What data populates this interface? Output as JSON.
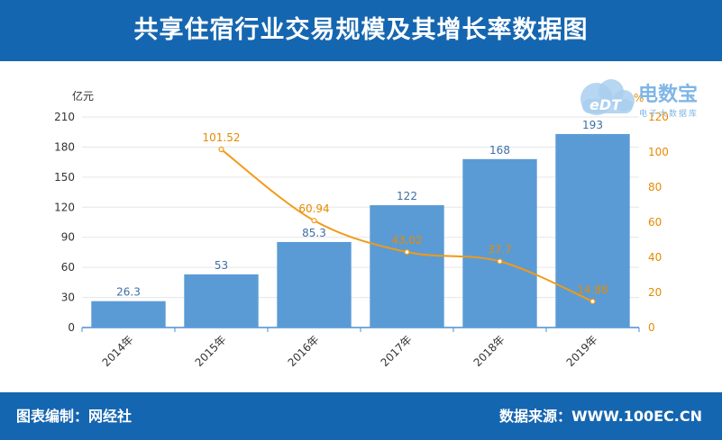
{
  "header": {
    "title": "共享住宿行业交易规模及其增长率数据图"
  },
  "footer": {
    "left_text": "图表编制：网经社",
    "right_text": "数据来源：WWW.100EC.CN"
  },
  "logo": {
    "brand": "电数宝",
    "sub": "电子大数据库",
    "mark": "eDT"
  },
  "colors": {
    "header_bg": "#1566b0",
    "bar": "#5b9bd5",
    "line": "#f29a17",
    "bar_label": "#3d6fa8",
    "line_label": "#e68a00"
  },
  "chart_data": {
    "type": "bar",
    "categories": [
      "2014年",
      "2015年",
      "2016年",
      "2017年",
      "2018年",
      "2019年"
    ],
    "series": [
      {
        "name": "",
        "type": "bar",
        "axis": "left",
        "values": [
          26.3,
          53,
          85.3,
          122,
          168,
          193
        ]
      },
      {
        "name": "",
        "type": "line",
        "axis": "right",
        "values": [
          null,
          101.52,
          60.94,
          43.02,
          37.7,
          14.88
        ]
      }
    ],
    "bar_labels": [
      "26.3",
      "53",
      "85.3",
      "122",
      "168",
      "193"
    ],
    "line_labels": [
      "",
      "101.52",
      "60.94",
      "43.02",
      "37.7",
      "14.88"
    ],
    "left_axis": {
      "unit": "亿元",
      "ylim": [
        0,
        210
      ],
      "ticks": [
        0,
        30,
        60,
        90,
        120,
        150,
        180,
        210
      ]
    },
    "right_axis": {
      "unit": "%",
      "ylim": [
        0,
        120
      ],
      "ticks": [
        0,
        20,
        40,
        60,
        80,
        100,
        120
      ]
    },
    "grid": true,
    "legend": "none"
  }
}
